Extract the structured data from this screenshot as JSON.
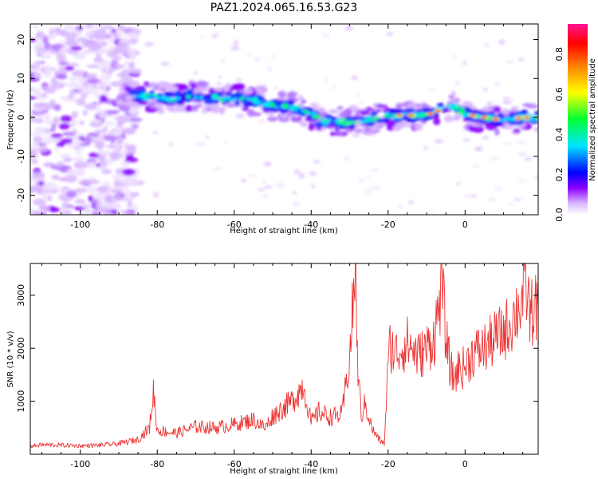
{
  "title": "PAZ1.2024.065.16.53.G23",
  "chart_data": [
    {
      "type": "heatmap",
      "xlabel": "Height of straight line (km)",
      "ylabel": "Frequency (Hz)",
      "xlim": [
        -113,
        19
      ],
      "ylim": [
        -25,
        24
      ],
      "xticks": [
        -100,
        -80,
        -60,
        -40,
        -20,
        0
      ],
      "yticks": [
        -20,
        -10,
        0,
        10,
        20
      ],
      "colorbar": {
        "label": "Normalized spectral amplitude",
        "range": [
          0.0,
          0.95
        ],
        "ticks": [
          0.0,
          0.2,
          0.4,
          0.6,
          0.8
        ],
        "colors": [
          "#ffffff",
          "#d9b8ff",
          "#8c00ff",
          "#0000ff",
          "#00e5ff",
          "#00ff33",
          "#ffff00",
          "#ff8000",
          "#ff0000",
          "#ff1493"
        ]
      },
      "ridge": {
        "description_values": "peak frequency (Hz) of the bright band vs height (km)",
        "x": [
          -85,
          -80,
          -75,
          -70,
          -65,
          -60,
          -55,
          -50,
          -45,
          -40,
          -37,
          -33,
          -30,
          -25,
          -20,
          -15,
          -10,
          -5,
          -3,
          0,
          5,
          10,
          15,
          19
        ],
        "y": [
          5.5,
          5.2,
          4.8,
          5.5,
          5.2,
          4.5,
          4.5,
          3.0,
          2.8,
          1.0,
          -1.0,
          -1.0,
          -1.2,
          -0.5,
          0.5,
          0.5,
          0.5,
          2.5,
          3.0,
          0.8,
          0.0,
          -0.8,
          0.0,
          0.0
        ]
      },
      "grid": false
    },
    {
      "type": "line",
      "xlabel": "Height of straight line (km)",
      "ylabel": "SNR (10 * v/v)",
      "xlim": [
        -113,
        19
      ],
      "ylim": [
        0,
        3600
      ],
      "xticks": [
        -100,
        -80,
        -60,
        -40,
        -20,
        0
      ],
      "yticks": [
        1000,
        2000,
        3000
      ],
      "color": "#ee3333",
      "series": [
        {
          "x": [
            -113,
            -110,
            -105,
            -100,
            -95,
            -90,
            -85,
            -82,
            -81,
            -80,
            -75,
            -70,
            -65,
            -60,
            -55,
            -52,
            -50,
            -45,
            -42,
            -40,
            -38,
            -35,
            -32,
            -30,
            -29,
            -28.5,
            -28,
            -27,
            -26,
            -24,
            -22,
            -21,
            -20,
            -19.5,
            -18,
            -15,
            -12,
            -10,
            -8,
            -7,
            -6,
            -5,
            -4,
            -3,
            -2,
            0,
            2,
            5,
            8,
            10,
            12,
            14,
            16,
            17,
            18,
            19
          ],
          "y": [
            150,
            180,
            170,
            160,
            170,
            200,
            280,
            500,
            1200,
            450,
            400,
            520,
            500,
            560,
            650,
            500,
            720,
            1000,
            1300,
            600,
            800,
            700,
            750,
            1800,
            3000,
            3550,
            1800,
            700,
            950,
            450,
            250,
            200,
            1700,
            2050,
            1900,
            2100,
            1850,
            2000,
            2200,
            2700,
            3200,
            2200,
            1700,
            1400,
            1600,
            1650,
            1900,
            2000,
            2200,
            2300,
            2500,
            2800,
            3100,
            2600,
            2800,
            2750
          ]
        }
      ],
      "grid": false
    }
  ]
}
